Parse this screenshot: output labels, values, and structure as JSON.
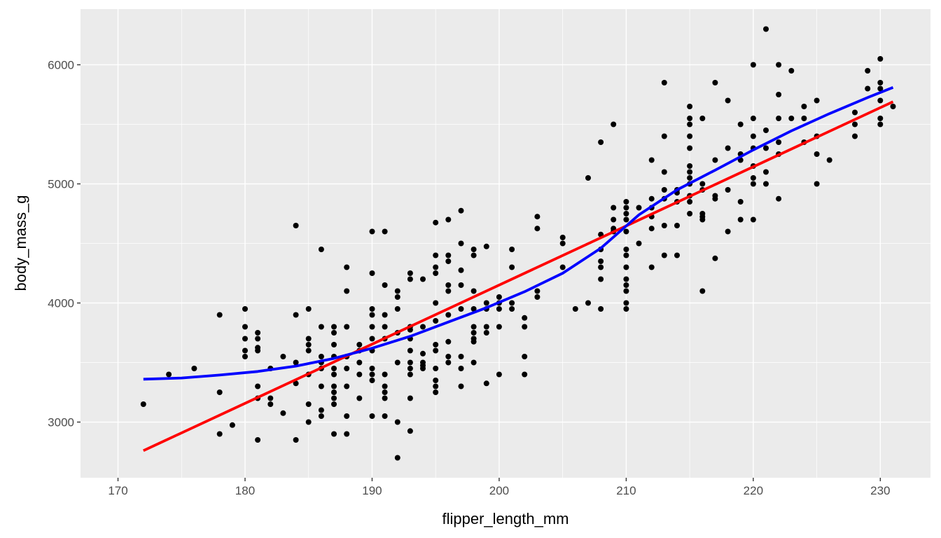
{
  "chart_data": {
    "type": "scatter",
    "xlabel": "flipper_length_mm",
    "ylabel": "body_mass_g",
    "xlim": [
      167.05,
      233.95
    ],
    "ylim": [
      2532.5,
      6467.5
    ],
    "x_major_ticks": [
      170,
      180,
      190,
      200,
      210,
      220,
      230
    ],
    "x_minor_ticks": [
      175,
      185,
      195,
      205,
      215,
      225
    ],
    "y_major_ticks": [
      3000,
      4000,
      5000,
      6000
    ],
    "y_minor_ticks": [
      3500,
      4500,
      5500
    ],
    "grid": true,
    "background": "#ebebeb",
    "grid_color": "#ffffff",
    "point_color": "#000000",
    "points": [
      [
        172,
        3150
      ],
      [
        174,
        3400
      ],
      [
        176,
        3450
      ],
      [
        178,
        3900
      ],
      [
        178,
        3250
      ],
      [
        178,
        2900
      ],
      [
        179,
        2975
      ],
      [
        180,
        3950
      ],
      [
        180,
        3800
      ],
      [
        180,
        3700
      ],
      [
        180,
        3600
      ],
      [
        180,
        3550
      ],
      [
        181,
        3750
      ],
      [
        181,
        3700
      ],
      [
        181,
        3625
      ],
      [
        181,
        3600
      ],
      [
        181,
        3300
      ],
      [
        181,
        3200
      ],
      [
        181,
        2850
      ],
      [
        182,
        3450
      ],
      [
        182,
        3200
      ],
      [
        182,
        3150
      ],
      [
        183,
        3550
      ],
      [
        183,
        3075
      ],
      [
        184,
        4650
      ],
      [
        184,
        3900
      ],
      [
        184,
        3500
      ],
      [
        184,
        3325
      ],
      [
        184,
        2850
      ],
      [
        185,
        3950
      ],
      [
        185,
        3700
      ],
      [
        185,
        3650
      ],
      [
        185,
        3600
      ],
      [
        185,
        3400
      ],
      [
        185,
        3150
      ],
      [
        185,
        3000
      ],
      [
        186,
        4450
      ],
      [
        186,
        3800
      ],
      [
        186,
        3550
      ],
      [
        186,
        3500
      ],
      [
        186,
        3450
      ],
      [
        186,
        3300
      ],
      [
        186,
        3100
      ],
      [
        186,
        3050
      ],
      [
        187,
        3800
      ],
      [
        187,
        3750
      ],
      [
        187,
        3650
      ],
      [
        187,
        3550
      ],
      [
        187,
        3450
      ],
      [
        187,
        3400
      ],
      [
        187,
        3300
      ],
      [
        187,
        3250
      ],
      [
        187,
        3200
      ],
      [
        187,
        3150
      ],
      [
        187,
        2900
      ],
      [
        188,
        4300
      ],
      [
        188,
        4100
      ],
      [
        188,
        3800
      ],
      [
        188,
        3550
      ],
      [
        188,
        3450
      ],
      [
        188,
        3300
      ],
      [
        188,
        3050
      ],
      [
        188,
        2900
      ],
      [
        189,
        3650
      ],
      [
        189,
        3600
      ],
      [
        189,
        3500
      ],
      [
        189,
        3400
      ],
      [
        189,
        3200
      ],
      [
        190,
        4600
      ],
      [
        190,
        4250
      ],
      [
        190,
        3950
      ],
      [
        190,
        3900
      ],
      [
        190,
        3800
      ],
      [
        190,
        3700
      ],
      [
        190,
        3600
      ],
      [
        190,
        3450
      ],
      [
        190,
        3400
      ],
      [
        190,
        3350
      ],
      [
        190,
        3050
      ],
      [
        191,
        4600
      ],
      [
        191,
        4150
      ],
      [
        191,
        3900
      ],
      [
        191,
        3800
      ],
      [
        191,
        3700
      ],
      [
        191,
        3400
      ],
      [
        191,
        3300
      ],
      [
        191,
        3250
      ],
      [
        191,
        3200
      ],
      [
        191,
        3050
      ],
      [
        192,
        4100
      ],
      [
        192,
        4050
      ],
      [
        192,
        3950
      ],
      [
        192,
        3750
      ],
      [
        192,
        3500
      ],
      [
        192,
        3000
      ],
      [
        192,
        2700
      ],
      [
        193,
        4250
      ],
      [
        193,
        4200
      ],
      [
        193,
        3800
      ],
      [
        193,
        3775
      ],
      [
        193,
        3700
      ],
      [
        193,
        3600
      ],
      [
        193,
        3500
      ],
      [
        193,
        3450
      ],
      [
        193,
        3400
      ],
      [
        193,
        3200
      ],
      [
        193,
        2925
      ],
      [
        194,
        4200
      ],
      [
        194,
        3800
      ],
      [
        194,
        3575
      ],
      [
        194,
        3500
      ],
      [
        194,
        3475
      ],
      [
        194,
        3450
      ],
      [
        195,
        4675
      ],
      [
        195,
        4400
      ],
      [
        195,
        4300
      ],
      [
        195,
        4250
      ],
      [
        195,
        4000
      ],
      [
        195,
        3850
      ],
      [
        195,
        3650
      ],
      [
        195,
        3600
      ],
      [
        195,
        3450
      ],
      [
        195,
        3350
      ],
      [
        195,
        3300
      ],
      [
        195,
        3250
      ],
      [
        196,
        4700
      ],
      [
        196,
        4400
      ],
      [
        196,
        4350
      ],
      [
        196,
        4150
      ],
      [
        196,
        4100
      ],
      [
        196,
        3900
      ],
      [
        196,
        3675
      ],
      [
        196,
        3550
      ],
      [
        196,
        3500
      ],
      [
        197,
        4775
      ],
      [
        197,
        4500
      ],
      [
        197,
        4275
      ],
      [
        197,
        4150
      ],
      [
        197,
        3950
      ],
      [
        197,
        3550
      ],
      [
        197,
        3450
      ],
      [
        197,
        3300
      ],
      [
        198,
        4450
      ],
      [
        198,
        4400
      ],
      [
        198,
        4100
      ],
      [
        198,
        3950
      ],
      [
        198,
        3800
      ],
      [
        198,
        3750
      ],
      [
        198,
        3700
      ],
      [
        198,
        3675
      ],
      [
        198,
        3500
      ],
      [
        199,
        4475
      ],
      [
        199,
        4000
      ],
      [
        199,
        3950
      ],
      [
        199,
        3800
      ],
      [
        199,
        3750
      ],
      [
        199,
        3325
      ],
      [
        200,
        4050
      ],
      [
        200,
        4000
      ],
      [
        200,
        3950
      ],
      [
        200,
        3800
      ],
      [
        200,
        3400
      ],
      [
        201,
        4450
      ],
      [
        201,
        4300
      ],
      [
        201,
        4000
      ],
      [
        201,
        3950
      ],
      [
        202,
        3875
      ],
      [
        202,
        3800
      ],
      [
        202,
        3550
      ],
      [
        202,
        3400
      ],
      [
        203,
        4725
      ],
      [
        203,
        4625
      ],
      [
        203,
        4100
      ],
      [
        203,
        4050
      ],
      [
        205,
        4550
      ],
      [
        205,
        4500
      ],
      [
        205,
        4300
      ],
      [
        206,
        3950
      ],
      [
        207,
        5050
      ],
      [
        207,
        4000
      ],
      [
        208,
        5350
      ],
      [
        208,
        4575
      ],
      [
        208,
        4450
      ],
      [
        208,
        4350
      ],
      [
        208,
        4300
      ],
      [
        208,
        4200
      ],
      [
        208,
        3950
      ],
      [
        209,
        5500
      ],
      [
        209,
        4800
      ],
      [
        209,
        4700
      ],
      [
        209,
        4625
      ],
      [
        209,
        4600
      ],
      [
        210,
        4850
      ],
      [
        210,
        4800
      ],
      [
        210,
        4750
      ],
      [
        210,
        4700
      ],
      [
        210,
        4600
      ],
      [
        210,
        4450
      ],
      [
        210,
        4400
      ],
      [
        210,
        4300
      ],
      [
        210,
        4200
      ],
      [
        210,
        4150
      ],
      [
        210,
        4100
      ],
      [
        210,
        4000
      ],
      [
        210,
        3950
      ],
      [
        211,
        4800
      ],
      [
        211,
        4500
      ],
      [
        212,
        5200
      ],
      [
        212,
        4875
      ],
      [
        212,
        4800
      ],
      [
        212,
        4725
      ],
      [
        212,
        4625
      ],
      [
        212,
        4300
      ],
      [
        213,
        5850
      ],
      [
        213,
        5400
      ],
      [
        213,
        5100
      ],
      [
        213,
        4950
      ],
      [
        213,
        4875
      ],
      [
        213,
        4650
      ],
      [
        213,
        4400
      ],
      [
        214,
        4950
      ],
      [
        214,
        4925
      ],
      [
        214,
        4850
      ],
      [
        214,
        4650
      ],
      [
        214,
        4400
      ],
      [
        215,
        5650
      ],
      [
        215,
        5550
      ],
      [
        215,
        5500
      ],
      [
        215,
        5400
      ],
      [
        215,
        5300
      ],
      [
        215,
        5150
      ],
      [
        215,
        5100
      ],
      [
        215,
        5050
      ],
      [
        215,
        5000
      ],
      [
        215,
        4900
      ],
      [
        215,
        4850
      ],
      [
        215,
        4750
      ],
      [
        216,
        5550
      ],
      [
        216,
        5000
      ],
      [
        216,
        4950
      ],
      [
        216,
        4750
      ],
      [
        216,
        4725
      ],
      [
        216,
        4700
      ],
      [
        216,
        4100
      ],
      [
        217,
        5850
      ],
      [
        217,
        5200
      ],
      [
        217,
        4900
      ],
      [
        217,
        4875
      ],
      [
        217,
        4375
      ],
      [
        218,
        5700
      ],
      [
        218,
        5300
      ],
      [
        218,
        4950
      ],
      [
        218,
        4600
      ],
      [
        219,
        5500
      ],
      [
        219,
        5250
      ],
      [
        219,
        5200
      ],
      [
        219,
        4850
      ],
      [
        219,
        4700
      ],
      [
        220,
        6000
      ],
      [
        220,
        5550
      ],
      [
        220,
        5400
      ],
      [
        220,
        5300
      ],
      [
        220,
        5150
      ],
      [
        220,
        5050
      ],
      [
        220,
        5000
      ],
      [
        220,
        4700
      ],
      [
        221,
        6300
      ],
      [
        221,
        5450
      ],
      [
        221,
        5300
      ],
      [
        221,
        5100
      ],
      [
        221,
        5000
      ],
      [
        222,
        6000
      ],
      [
        222,
        5750
      ],
      [
        222,
        5550
      ],
      [
        222,
        5350
      ],
      [
        222,
        5250
      ],
      [
        222,
        4875
      ],
      [
        223,
        5950
      ],
      [
        223,
        5550
      ],
      [
        224,
        5650
      ],
      [
        224,
        5550
      ],
      [
        224,
        5350
      ],
      [
        225,
        5700
      ],
      [
        225,
        5400
      ],
      [
        225,
        5250
      ],
      [
        225,
        5000
      ],
      [
        226,
        5200
      ],
      [
        228,
        5600
      ],
      [
        228,
        5500
      ],
      [
        228,
        5400
      ],
      [
        229,
        5950
      ],
      [
        229,
        5800
      ],
      [
        230,
        6050
      ],
      [
        230,
        5850
      ],
      [
        230,
        5800
      ],
      [
        230,
        5700
      ],
      [
        230,
        5550
      ],
      [
        230,
        5500
      ],
      [
        231,
        5650
      ]
    ],
    "series": [
      {
        "type": "line",
        "color": "#ff0000",
        "x": [
          172,
          231
        ],
        "y": [
          2760,
          5690
        ]
      },
      {
        "type": "line",
        "color": "#0000ff",
        "x": [
          172,
          175,
          178,
          181,
          184,
          187,
          190,
          193,
          196,
          199,
          202,
          205,
          208,
          211,
          214,
          217,
          220,
          223,
          226,
          229,
          231
        ],
        "y": [
          3360,
          3370,
          3395,
          3425,
          3470,
          3535,
          3620,
          3720,
          3840,
          3960,
          4095,
          4250,
          4460,
          4740,
          4950,
          5115,
          5285,
          5445,
          5590,
          5725,
          5810
        ]
      }
    ]
  }
}
